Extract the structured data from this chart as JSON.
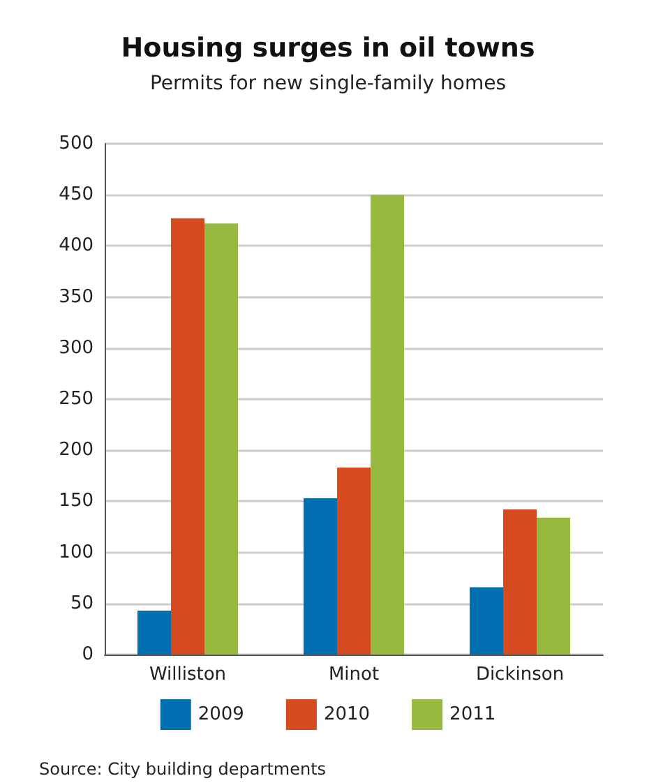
{
  "chart_data": {
    "type": "bar",
    "title": "Housing surges in oil towns",
    "subtitle": "Permits for new single-family homes",
    "categories": [
      "Williston",
      "Minot",
      "Dickinson"
    ],
    "series": [
      {
        "name": "2009",
        "color": "#0070b3",
        "values": [
          43,
          153,
          66
        ]
      },
      {
        "name": "2010",
        "color": "#d64a1f",
        "values": [
          427,
          183,
          142
        ]
      },
      {
        "name": "2011",
        "color": "#95ba3f",
        "values": [
          422,
          450,
          134
        ]
      }
    ],
    "ylim": [
      0,
      500
    ],
    "yticks": [
      0,
      50,
      100,
      150,
      200,
      250,
      300,
      350,
      400,
      450,
      500
    ],
    "grid": "y",
    "legend": "bottom",
    "annotations": [
      "Source: City building departments"
    ]
  }
}
